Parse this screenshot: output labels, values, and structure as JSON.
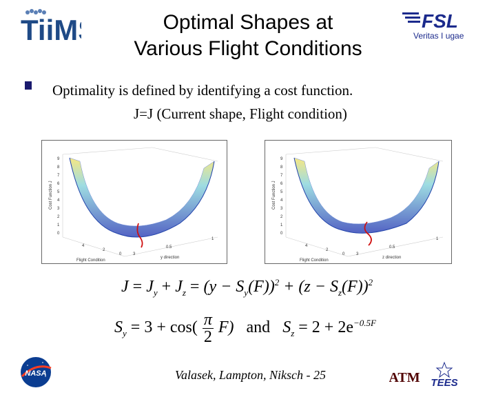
{
  "header": {
    "title_line1": "Optimal Shapes at",
    "title_line2": "Various Flight Conditions",
    "logo_left_text": "TiiMS",
    "logo_right_text": "FSL",
    "logo_right_motto": "Veritas I ugae"
  },
  "bullet": {
    "text": "Optimality is defined by identifying a cost function.",
    "subtext": "J=J (Current shape, Flight condition)"
  },
  "plots": {
    "left": {
      "ylabel": "Cost Function J",
      "xlabel": "Flight Condition",
      "zlabel": "y direction",
      "yticks": [
        "9",
        "8",
        "7",
        "6",
        "5",
        "4",
        "3",
        "2",
        "1",
        "0"
      ],
      "xticks": [
        "4",
        "2",
        "0"
      ],
      "zticks": [
        "3",
        "0.5",
        "1"
      ]
    },
    "right": {
      "ylabel": "Cost Function J",
      "xlabel": "Flight Condition",
      "zlabel": "z direction",
      "yticks": [
        "9",
        "8",
        "7",
        "6",
        "5",
        "4",
        "3",
        "2",
        "1",
        "0"
      ],
      "xticks": [
        "4",
        "2",
        "0"
      ],
      "zticks": [
        "3",
        "0.5",
        "1"
      ]
    }
  },
  "equations": {
    "eq1": {
      "J": "J",
      "eq": "=",
      "Jy": "J",
      "y": "y",
      "plus": "+",
      "Jz": "J",
      "z": "z",
      "term1": "(y − S",
      "F1": "(F))",
      "sq": "2",
      "term2": "+ (z − S",
      "F2": "(F))"
    },
    "eq2": {
      "Sy": "S",
      "y": "y",
      "part1": "= 3 + cos(",
      "pi": "π",
      "two": "2",
      "F": "F)",
      "and": "and",
      "Sz": "S",
      "z": "z",
      "part2": "= 2 + 2e",
      "exp": "−0.5F"
    }
  },
  "footer": {
    "text": "Valasek, Lampton, Niksch - 25",
    "nasa": "NASA",
    "atm": "ATM",
    "tees": "TEES"
  },
  "colors": {
    "bullet": "#1a1a6e",
    "fsl_blue": "#1b2a8c",
    "aggie_maroon": "#500000",
    "nasa_blue": "#0b3d91",
    "nasa_red": "#fc3d21"
  }
}
